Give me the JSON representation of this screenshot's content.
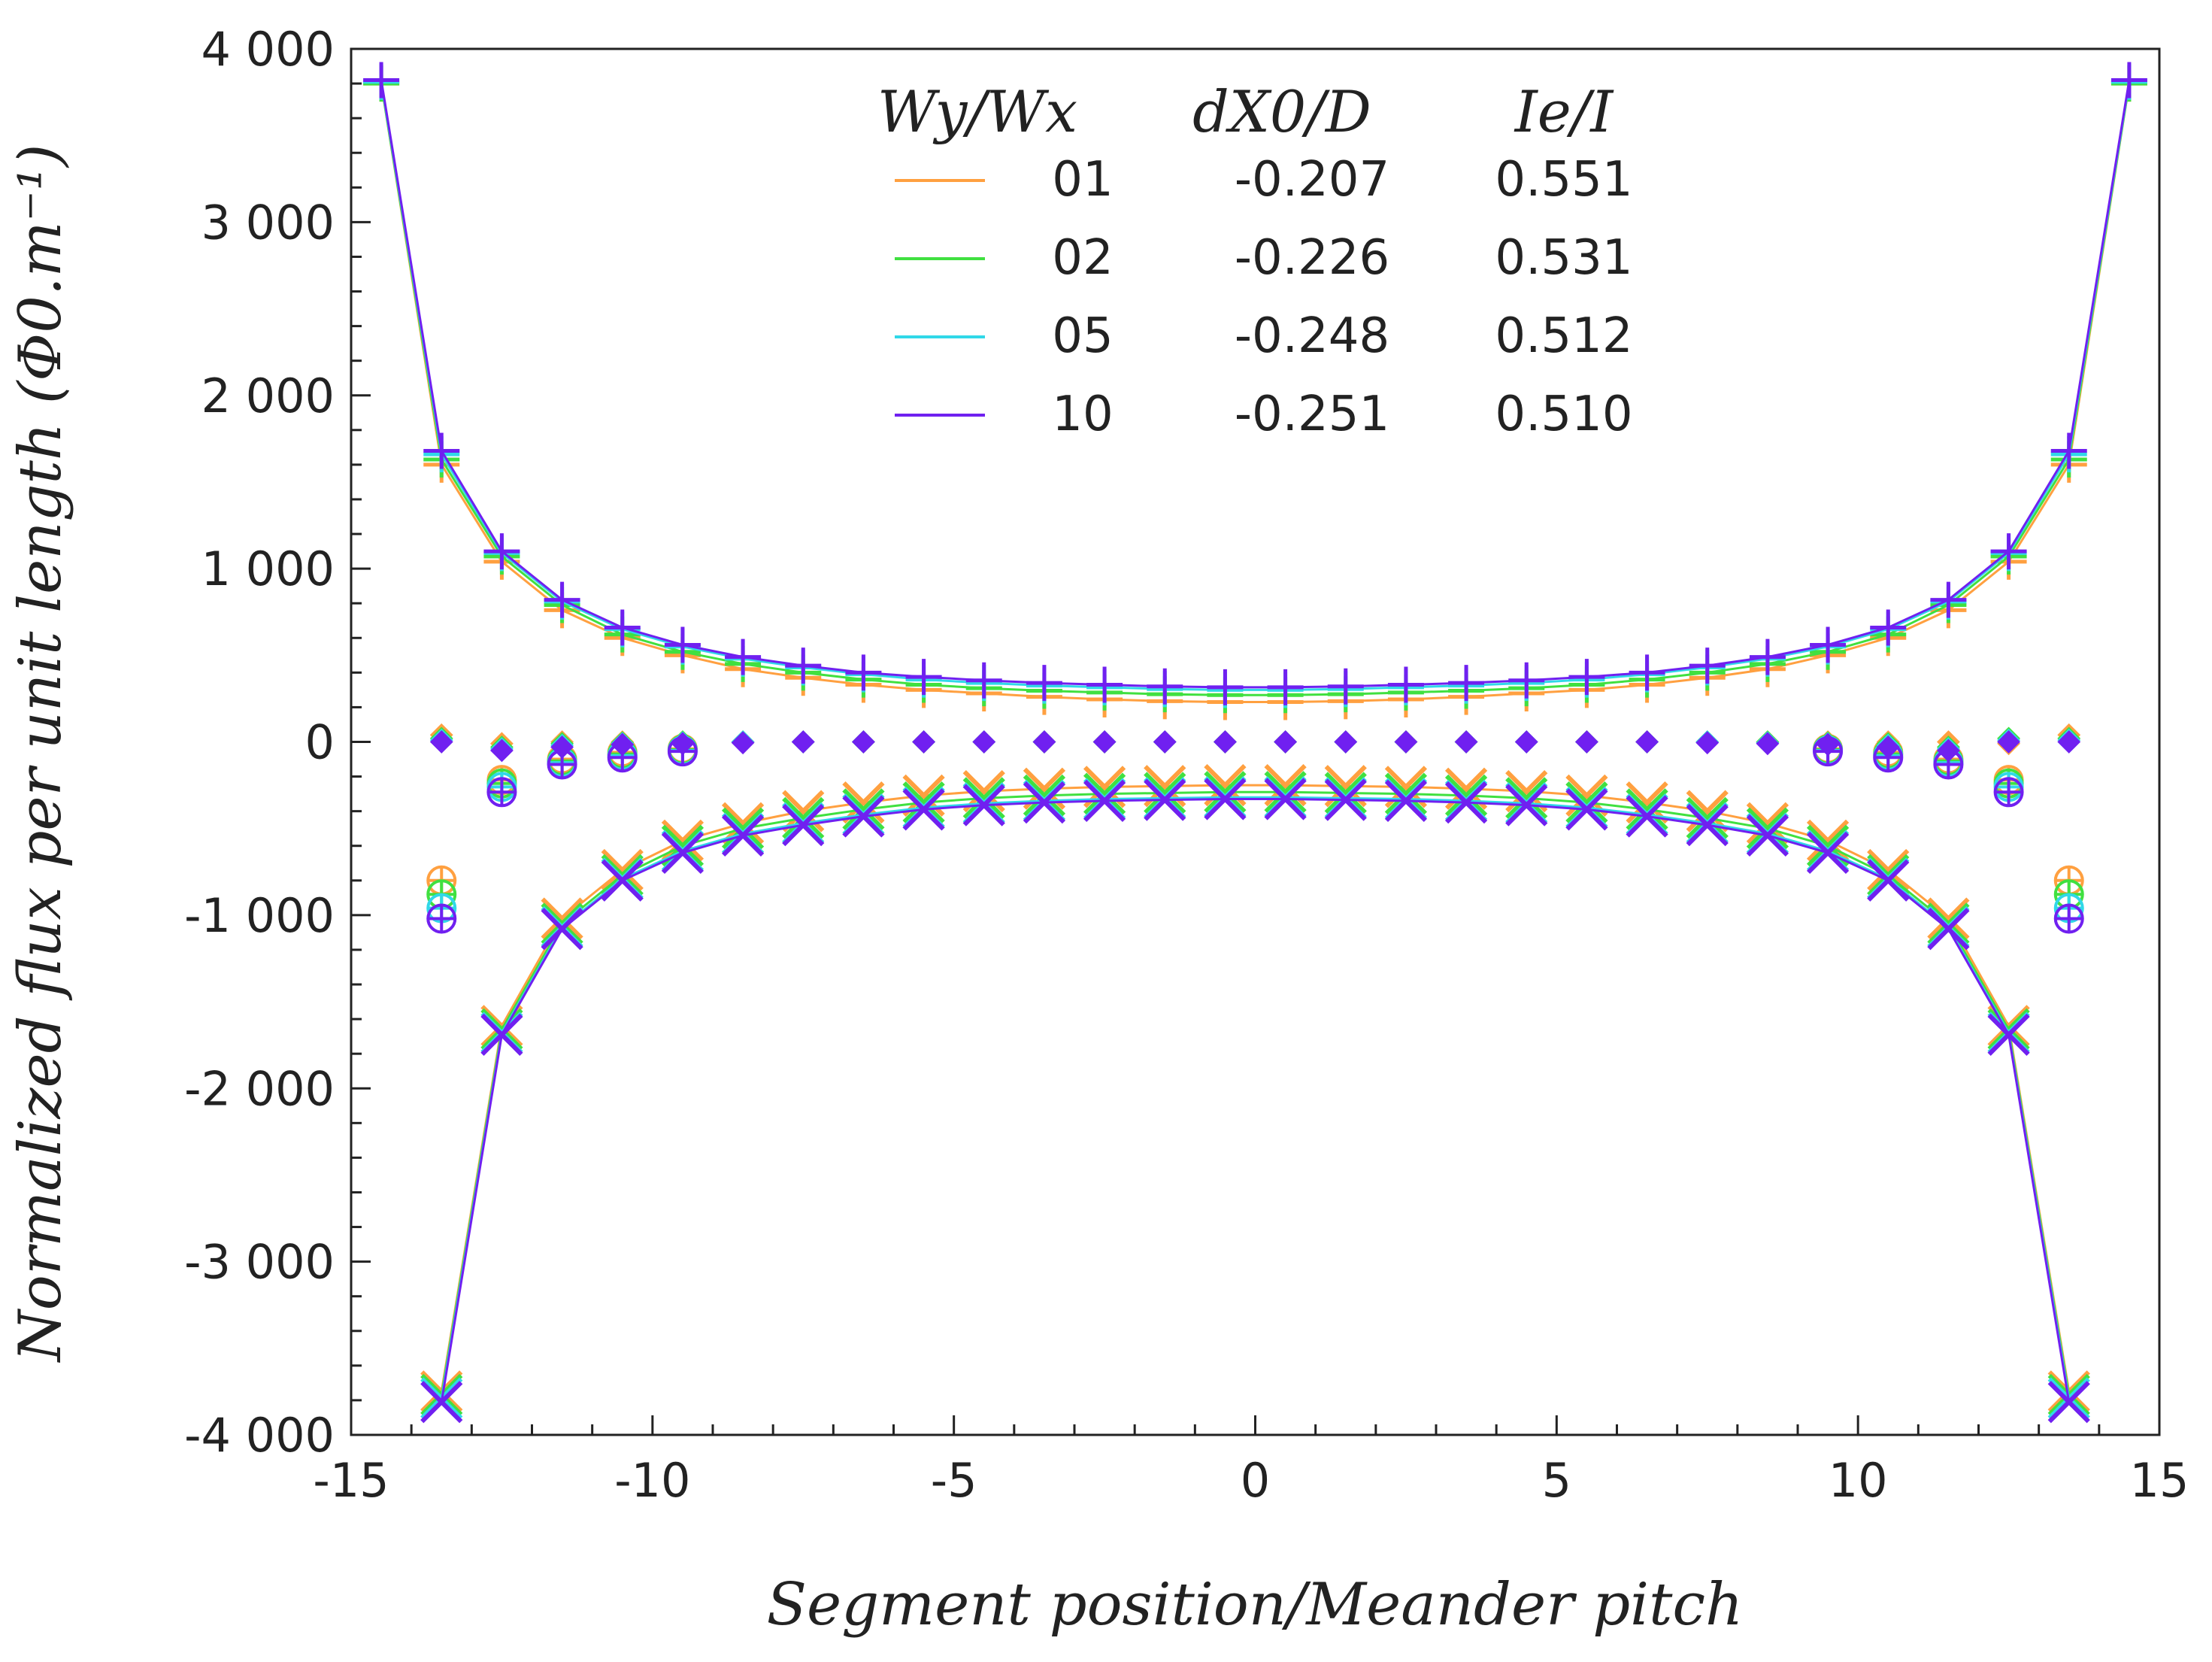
{
  "chart_data": {
    "type": "line",
    "title": "",
    "xlabel": "Segment position/Meander pitch",
    "ylabel": "Normalized flux per unit length (Φ0.m⁻¹)",
    "xlim": [
      -15,
      15
    ],
    "ylim": [
      -4000,
      4000
    ],
    "x_ticks": [
      -15,
      -10,
      -5,
      0,
      5,
      10,
      15
    ],
    "x_tick_labels": [
      "-15",
      "-10",
      "-5",
      "0",
      "5",
      "10",
      "15"
    ],
    "y_ticks": [
      4000,
      3000,
      2000,
      1000,
      0,
      -1000,
      -2000,
      -3000,
      -4000
    ],
    "y_tick_labels": [
      "4 000",
      "3 000",
      "2 000",
      "1 000",
      "0",
      "-1 000",
      "-2 000",
      "-3 000",
      "-4 000"
    ],
    "grid": false,
    "legend": {
      "placement": "top-center",
      "headers": [
        "Wy/Wx",
        "dX0/D",
        "Ie/I"
      ],
      "rows": [
        {
          "name": "01",
          "dx": "-0.207",
          "ie": "0.551",
          "color": "#ffa040"
        },
        {
          "name": "02",
          "dx": "-0.226",
          "ie": "0.531",
          "color": "#40e040"
        },
        {
          "name": "05",
          "dx": "-0.248",
          "ie": "0.512",
          "color": "#30d8e8"
        },
        {
          "name": "10",
          "dx": "-0.251",
          "ie": "0.510",
          "color": "#7020f0"
        }
      ]
    },
    "marker_types": [
      "plus",
      "filled-diamond",
      "circle-plus",
      "cross"
    ],
    "positive_x": [
      -14.5,
      -13.5,
      -12.5,
      -11.5,
      -10.5,
      -9.5,
      -8.5,
      -7.5,
      -6.5,
      -5.5,
      -4.5,
      -3.5,
      -2.5,
      -1.5,
      -0.5,
      0.5,
      1.5,
      2.5,
      3.5,
      4.5,
      5.5,
      6.5,
      7.5,
      8.5,
      9.5,
      10.5,
      11.5,
      12.5,
      13.5,
      14.5
    ],
    "negative_x": [
      -13.5,
      -12.5,
      -11.5,
      -10.5,
      -9.5,
      -8.5,
      -7.5,
      -6.5,
      -5.5,
      -4.5,
      -3.5,
      -2.5,
      -1.5,
      -0.5,
      0.5,
      1.5,
      2.5,
      3.5,
      4.5,
      5.5,
      6.5,
      7.5,
      8.5,
      9.5,
      10.5,
      11.5,
      12.5,
      13.5
    ],
    "series": [
      {
        "name": "01",
        "color": "#ffa040",
        "positive": [
          3800,
          1600,
          1040,
          760,
          600,
          500,
          420,
          370,
          330,
          300,
          280,
          260,
          245,
          235,
          230,
          230,
          235,
          245,
          260,
          280,
          300,
          330,
          370,
          420,
          500,
          600,
          760,
          1040,
          1600,
          3800
        ],
        "negative": [
          -3750,
          -1640,
          -1020,
          -740,
          -570,
          -470,
          -400,
          -350,
          -310,
          -285,
          -270,
          -260,
          -255,
          -250,
          -250,
          -255,
          -260,
          -270,
          -285,
          -310,
          -350,
          -400,
          -470,
          -570,
          -740,
          -1020,
          -1640,
          -3750
        ],
        "midline_x": [
          -13.5,
          -12.5,
          -11.5,
          -10.5,
          -9.5,
          -8.5,
          -7.5,
          -6.5,
          -5.5,
          -4.5,
          -3.5,
          -2.5,
          -1.5,
          -0.5,
          0.5,
          1.5,
          2.5,
          3.5,
          4.5,
          5.5,
          6.5,
          7.5,
          8.5,
          9.5,
          10.5,
          11.5,
          12.5,
          13.5
        ],
        "midline": [
          40,
          -10,
          0,
          0,
          0,
          0,
          0,
          0,
          0,
          0,
          0,
          0,
          0,
          0,
          0,
          0,
          0,
          0,
          0,
          0,
          0,
          0,
          0,
          0,
          0,
          0,
          -10,
          40
        ],
        "circle_x": [
          -13.5,
          -12.5,
          -11.5,
          -10.5,
          -9.5,
          9.5,
          10.5,
          11.5,
          12.5,
          13.5
        ],
        "circle": [
          -800,
          -220,
          -100,
          -60,
          -40,
          -40,
          -60,
          -100,
          -220,
          -800
        ]
      },
      {
        "name": "02",
        "color": "#40e040",
        "positive": [
          3800,
          1630,
          1070,
          790,
          620,
          520,
          450,
          400,
          360,
          330,
          310,
          295,
          285,
          275,
          270,
          270,
          275,
          285,
          295,
          310,
          330,
          360,
          400,
          450,
          520,
          620,
          790,
          1070,
          1630,
          3800
        ],
        "negative": [
          -3770,
          -1660,
          -1050,
          -770,
          -600,
          -500,
          -440,
          -390,
          -350,
          -325,
          -310,
          -300,
          -295,
          -290,
          -290,
          -295,
          -300,
          -310,
          -325,
          -350,
          -390,
          -440,
          -500,
          -600,
          -770,
          -1050,
          -1660,
          -3770
        ],
        "midline_x": [
          -13.5,
          -12.5,
          -11.5,
          -10.5,
          -9.5,
          -8.5,
          -7.5,
          -6.5,
          -5.5,
          -4.5,
          -3.5,
          -2.5,
          -1.5,
          -0.5,
          0.5,
          1.5,
          2.5,
          3.5,
          4.5,
          5.5,
          6.5,
          7.5,
          8.5,
          9.5,
          10.5,
          11.5,
          12.5,
          13.5
        ],
        "midline": [
          20,
          -30,
          -10,
          -5,
          0,
          0,
          0,
          0,
          0,
          0,
          0,
          0,
          0,
          0,
          0,
          0,
          0,
          0,
          0,
          0,
          0,
          0,
          0,
          -5,
          -10,
          -30,
          20,
          20
        ],
        "circle_x": [
          -13.5,
          -12.5,
          -11.5,
          -10.5,
          -9.5,
          9.5,
          10.5,
          11.5,
          12.5,
          13.5
        ],
        "circle": [
          -880,
          -240,
          -110,
          -70,
          -45,
          -45,
          -70,
          -110,
          -240,
          -880
        ]
      },
      {
        "name": "05",
        "color": "#30d8e8",
        "positive": [
          3810,
          1660,
          1090,
          810,
          650,
          550,
          480,
          430,
          390,
          360,
          340,
          325,
          315,
          305,
          300,
          300,
          305,
          315,
          325,
          340,
          360,
          390,
          430,
          480,
          550,
          650,
          810,
          1090,
          1660,
          3810
        ],
        "negative": [
          -3790,
          -1680,
          -1070,
          -790,
          -630,
          -530,
          -470,
          -420,
          -380,
          -355,
          -340,
          -330,
          -325,
          -320,
          -320,
          -325,
          -330,
          -340,
          -355,
          -380,
          -420,
          -470,
          -530,
          -630,
          -790,
          -1070,
          -1680,
          -3790
        ],
        "midline_x": [
          -13.5,
          -12.5,
          -11.5,
          -10.5,
          -9.5,
          -8.5,
          -7.5,
          -6.5,
          -5.5,
          -4.5,
          -3.5,
          -2.5,
          -1.5,
          -0.5,
          0.5,
          1.5,
          2.5,
          3.5,
          4.5,
          5.5,
          6.5,
          7.5,
          8.5,
          9.5,
          10.5,
          11.5,
          12.5,
          13.5
        ],
        "midline": [
          10,
          -40,
          -20,
          -10,
          -5,
          0,
          0,
          0,
          0,
          0,
          0,
          0,
          0,
          0,
          0,
          0,
          0,
          0,
          0,
          0,
          0,
          0,
          -5,
          -10,
          -20,
          -40,
          10,
          10
        ],
        "circle_x": [
          -13.5,
          -12.5,
          -11.5,
          -10.5,
          -9.5,
          9.5,
          10.5,
          11.5,
          12.5,
          13.5
        ],
        "circle": [
          -960,
          -260,
          -120,
          -80,
          -50,
          -50,
          -80,
          -120,
          -260,
          -960
        ]
      },
      {
        "name": "10",
        "color": "#7020f0",
        "positive": [
          3820,
          1680,
          1100,
          820,
          660,
          560,
          490,
          440,
          400,
          375,
          355,
          340,
          330,
          320,
          315,
          315,
          320,
          330,
          340,
          355,
          375,
          400,
          440,
          490,
          560,
          660,
          820,
          1100,
          1680,
          3820
        ],
        "negative": [
          -3810,
          -1690,
          -1080,
          -800,
          -640,
          -540,
          -480,
          -430,
          -390,
          -365,
          -350,
          -340,
          -335,
          -330,
          -330,
          -335,
          -340,
          -350,
          -365,
          -390,
          -430,
          -480,
          -540,
          -640,
          -800,
          -1080,
          -1690,
          -3810
        ],
        "midline_x": [
          -13.5,
          -12.5,
          -11.5,
          -10.5,
          -9.5,
          -8.5,
          -7.5,
          -6.5,
          -5.5,
          -4.5,
          -3.5,
          -2.5,
          -1.5,
          -0.5,
          0.5,
          1.5,
          2.5,
          3.5,
          4.5,
          5.5,
          6.5,
          7.5,
          8.5,
          9.5,
          10.5,
          11.5,
          12.5,
          13.5
        ],
        "midline": [
          0,
          -50,
          -30,
          -15,
          -10,
          -5,
          0,
          0,
          0,
          0,
          0,
          0,
          0,
          0,
          0,
          0,
          0,
          0,
          0,
          0,
          0,
          -5,
          -10,
          -15,
          -30,
          -50,
          0,
          0
        ],
        "circle_x": [
          -13.5,
          -12.5,
          -11.5,
          -10.5,
          -9.5,
          9.5,
          10.5,
          11.5,
          12.5,
          13.5
        ],
        "circle": [
          -1020,
          -290,
          -130,
          -90,
          -55,
          -55,
          -90,
          -130,
          -290,
          -1020
        ]
      }
    ]
  }
}
